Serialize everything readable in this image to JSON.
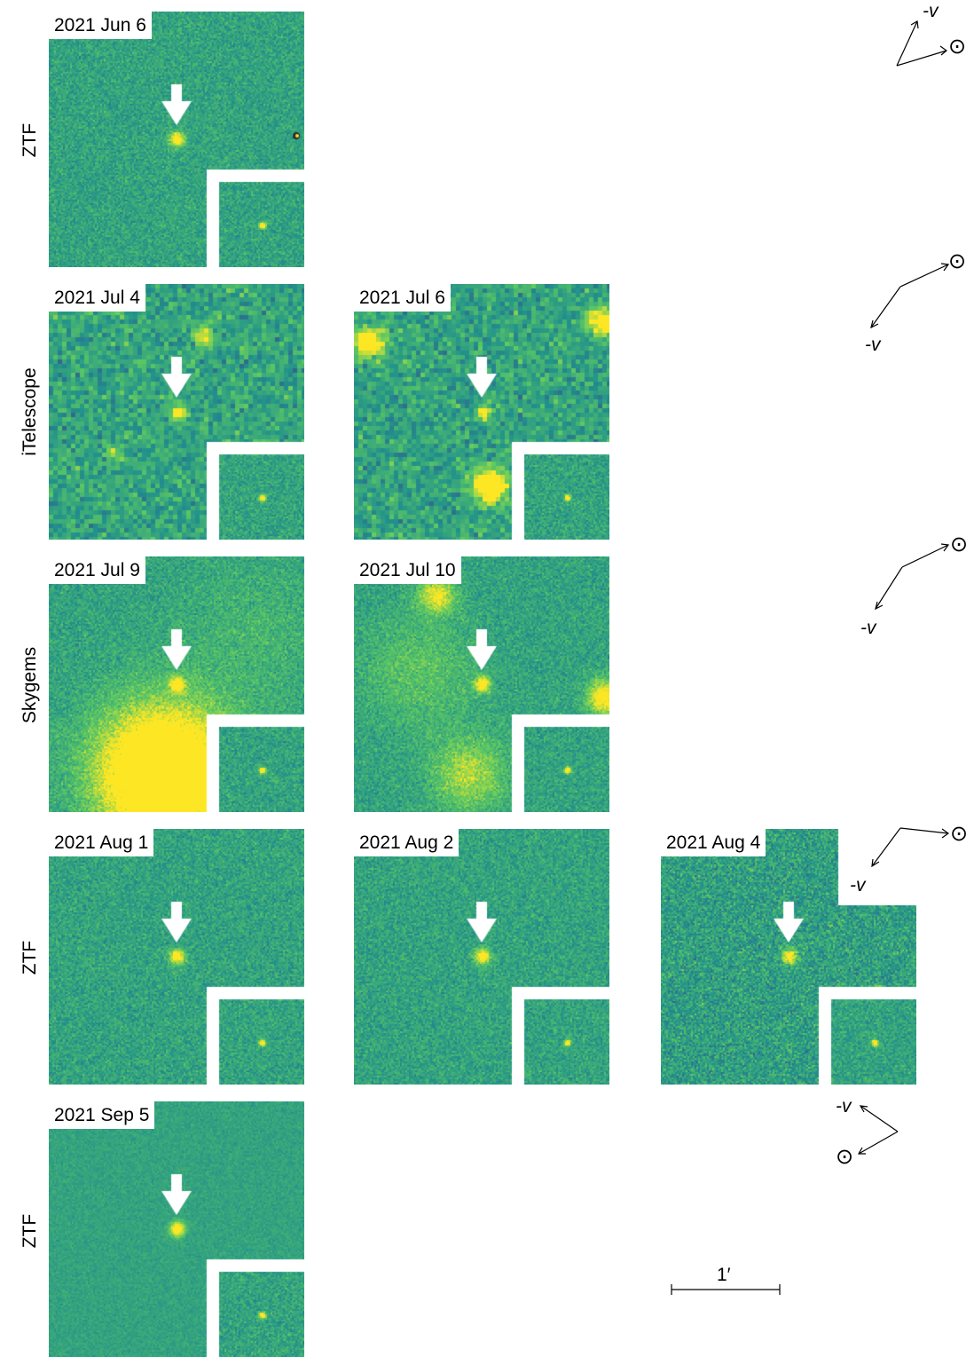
{
  "rows": [
    {
      "label": "ZTF"
    },
    {
      "label": "iTelescope"
    },
    {
      "label": "Skygems"
    },
    {
      "label": "ZTF"
    },
    {
      "label": "ZTF"
    }
  ],
  "panels": [
    {
      "date": "2021 Jun 6",
      "background": "noise",
      "has_star": true
    },
    {
      "date": "2021 Jul 4",
      "background": "coarse"
    },
    {
      "date": "2021 Jul 6",
      "background": "coarse-blobs"
    },
    {
      "date": "2021 Jul 9",
      "background": "glow"
    },
    {
      "date": "2021 Jul 10",
      "background": "diffuse"
    },
    {
      "date": "2021 Aug 1",
      "background": "noise"
    },
    {
      "date": "2021 Aug 2",
      "background": "noise"
    },
    {
      "date": "2021 Aug 4",
      "background": "noise-dark"
    },
    {
      "date": "2021 Sep 5",
      "background": "smooth"
    }
  ],
  "compass": {
    "velocity_label": "-v",
    "sun_symbol": "⊙"
  },
  "scale_bar": {
    "label": "1′"
  },
  "colors": {
    "field_base": "#3c9a72",
    "field_bright": "#fde725",
    "field_dark": "#2b3a7a",
    "arrow": "#ffffff",
    "label_bg": "#ffffff"
  }
}
